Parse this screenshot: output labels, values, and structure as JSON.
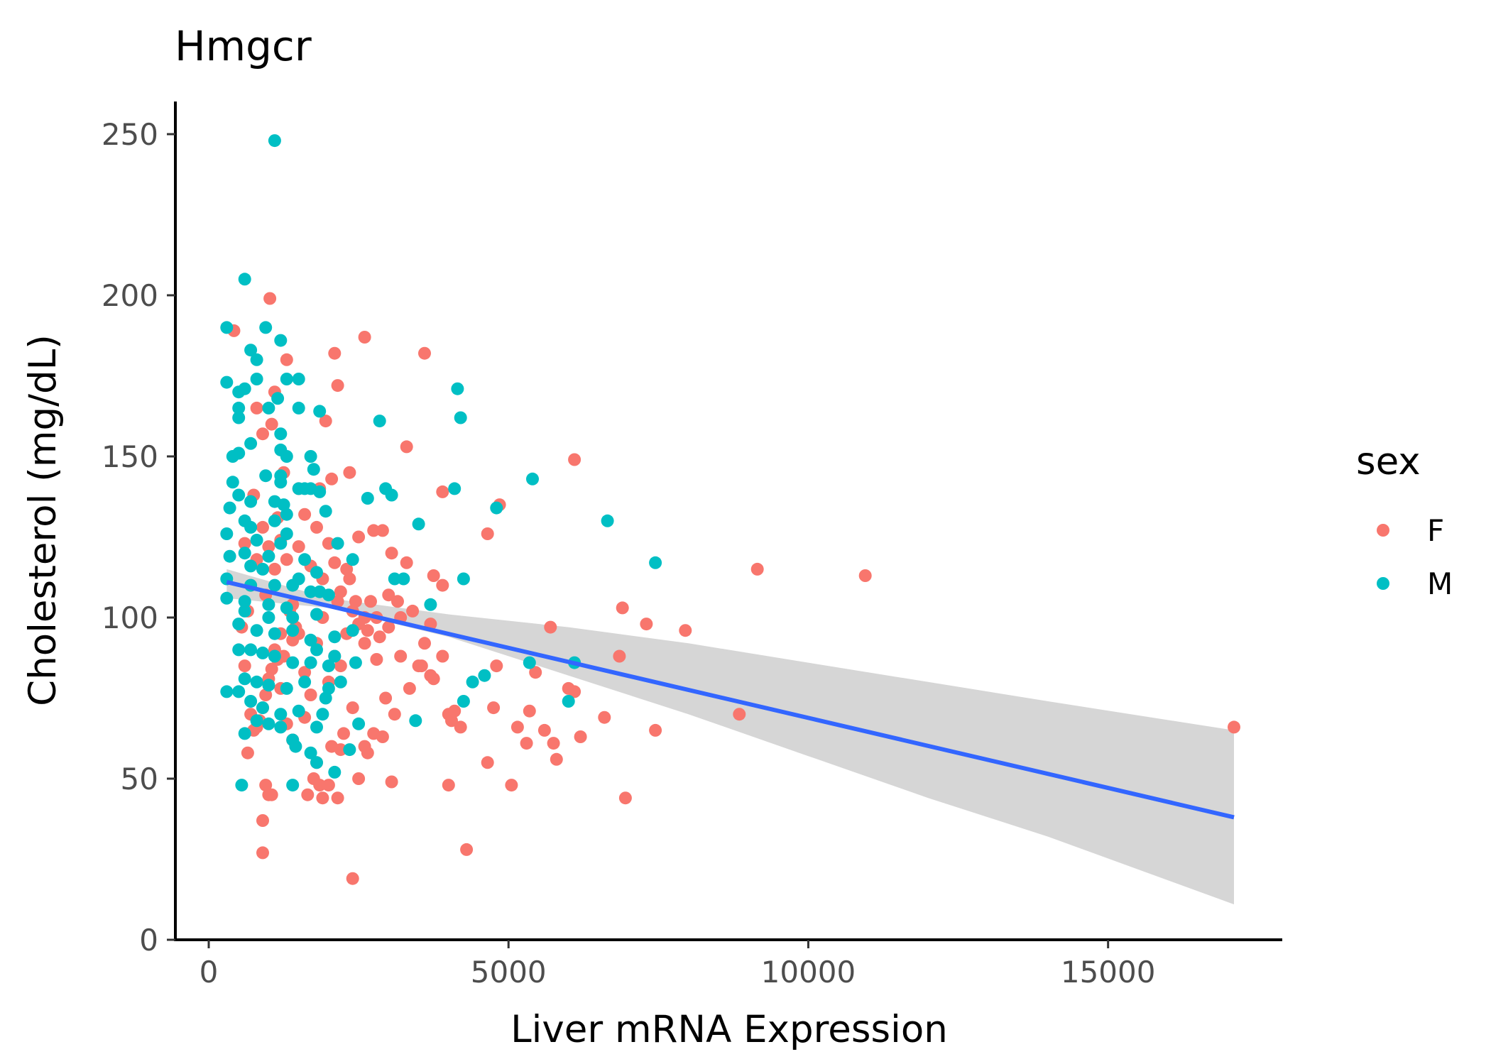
{
  "chart_data": {
    "type": "scatter",
    "title": "Hmgcr",
    "xlabel": "Liver mRNA Expression",
    "ylabel": "Cholesterol (mg/dL)",
    "xlim": [
      -600,
      18000
    ],
    "ylim": [
      0,
      260
    ],
    "xticks": [
      0,
      5000,
      10000,
      15000
    ],
    "xtick_labels": [
      "0",
      "5000",
      "10000",
      "15000"
    ],
    "yticks": [
      0,
      50,
      100,
      150,
      200,
      250
    ],
    "ytick_labels": [
      "0",
      "50",
      "100",
      "150",
      "200",
      "250"
    ],
    "grid": false,
    "legend": {
      "title": "sex",
      "position": "right"
    },
    "colors": {
      "F": "#F8766D",
      "M": "#00BFC4",
      "trend": "#3366FF",
      "ribbon": "#d4d4d4"
    },
    "series": [
      {
        "name": "F",
        "color": "#F8766D",
        "points": [
          [
            420,
            189
          ],
          [
            1020,
            199
          ],
          [
            2100,
            182
          ],
          [
            2150,
            172
          ],
          [
            2600,
            187
          ],
          [
            3600,
            182
          ],
          [
            6100,
            149
          ],
          [
            3300,
            153
          ],
          [
            4850,
            135
          ],
          [
            3900,
            139
          ],
          [
            4650,
            126
          ],
          [
            1950,
            161
          ],
          [
            1300,
            180
          ],
          [
            1100,
            170
          ],
          [
            1050,
            160
          ],
          [
            800,
            165
          ],
          [
            900,
            157
          ],
          [
            1250,
            145
          ],
          [
            1850,
            140
          ],
          [
            2050,
            143
          ],
          [
            2350,
            145
          ],
          [
            1500,
            140
          ],
          [
            2750,
            127
          ],
          [
            2900,
            127
          ],
          [
            3050,
            120
          ],
          [
            3300,
            117
          ],
          [
            3750,
            113
          ],
          [
            3900,
            110
          ],
          [
            2500,
            125
          ],
          [
            2300,
            115
          ],
          [
            2150,
            105
          ],
          [
            2450,
            105
          ],
          [
            2600,
            100
          ],
          [
            2800,
            100
          ],
          [
            2850,
            94
          ],
          [
            3000,
            107
          ],
          [
            3150,
            105
          ],
          [
            3200,
            100
          ],
          [
            3500,
            85
          ],
          [
            3550,
            85
          ],
          [
            3700,
            98
          ],
          [
            3750,
            81
          ],
          [
            3900,
            88
          ],
          [
            4000,
            70
          ],
          [
            4050,
            68
          ],
          [
            4100,
            71
          ],
          [
            4200,
            66
          ],
          [
            4000,
            48
          ],
          [
            4300,
            28
          ],
          [
            4650,
            55
          ],
          [
            4750,
            72
          ],
          [
            4800,
            85
          ],
          [
            5050,
            48
          ],
          [
            5150,
            66
          ],
          [
            5300,
            61
          ],
          [
            5350,
            71
          ],
          [
            5450,
            83
          ],
          [
            5600,
            65
          ],
          [
            5700,
            97
          ],
          [
            5750,
            61
          ],
          [
            5800,
            56
          ],
          [
            6000,
            78
          ],
          [
            6100,
            77
          ],
          [
            6200,
            63
          ],
          [
            6600,
            69
          ],
          [
            6850,
            88
          ],
          [
            6900,
            103
          ],
          [
            6950,
            44
          ],
          [
            7300,
            98
          ],
          [
            7450,
            65
          ],
          [
            7950,
            96
          ],
          [
            8850,
            70
          ],
          [
            9150,
            115
          ],
          [
            10950,
            113
          ],
          [
            17100,
            66
          ],
          [
            2400,
            19
          ],
          [
            900,
            27
          ],
          [
            900,
            37
          ],
          [
            950,
            48
          ],
          [
            1000,
            45
          ],
          [
            1050,
            45
          ],
          [
            1200,
            78
          ],
          [
            1300,
            67
          ],
          [
            1400,
            62
          ],
          [
            1600,
            69
          ],
          [
            1650,
            45
          ],
          [
            1750,
            50
          ],
          [
            1800,
            55
          ],
          [
            1850,
            48
          ],
          [
            1900,
            44
          ],
          [
            2000,
            48
          ],
          [
            2050,
            60
          ],
          [
            2150,
            44
          ],
          [
            2200,
            59
          ],
          [
            2250,
            64
          ],
          [
            2400,
            72
          ],
          [
            2500,
            50
          ],
          [
            2600,
            60
          ],
          [
            2650,
            58
          ],
          [
            2750,
            64
          ],
          [
            2900,
            63
          ],
          [
            3050,
            49
          ],
          [
            2950,
            75
          ],
          [
            3100,
            70
          ],
          [
            3350,
            78
          ],
          [
            3200,
            88
          ],
          [
            2800,
            87
          ],
          [
            2600,
            92
          ],
          [
            2300,
            95
          ],
          [
            2200,
            85
          ],
          [
            2100,
            88
          ],
          [
            2000,
            80
          ],
          [
            1800,
            92
          ],
          [
            1700,
            76
          ],
          [
            1600,
            83
          ],
          [
            1500,
            95
          ],
          [
            1450,
            97
          ],
          [
            1400,
            93
          ],
          [
            1350,
            102
          ],
          [
            1250,
            88
          ],
          [
            1200,
            95
          ],
          [
            1150,
            87
          ],
          [
            1100,
            90
          ],
          [
            1050,
            84
          ],
          [
            1000,
            81
          ],
          [
            950,
            76
          ],
          [
            900,
            72
          ],
          [
            850,
            68
          ],
          [
            800,
            66
          ],
          [
            750,
            65
          ],
          [
            700,
            70
          ],
          [
            650,
            58
          ],
          [
            600,
            85
          ],
          [
            550,
            97
          ],
          [
            650,
            102
          ],
          [
            700,
            110
          ],
          [
            800,
            118
          ],
          [
            900,
            128
          ],
          [
            1000,
            122
          ],
          [
            1100,
            115
          ],
          [
            1200,
            124
          ],
          [
            1300,
            118
          ],
          [
            1500,
            122
          ],
          [
            1700,
            116
          ],
          [
            1900,
            112
          ],
          [
            2000,
            123
          ],
          [
            2200,
            108
          ],
          [
            2350,
            112
          ],
          [
            2500,
            98
          ],
          [
            2700,
            105
          ],
          [
            3000,
            97
          ],
          [
            3400,
            102
          ],
          [
            3600,
            92
          ],
          [
            3700,
            82
          ],
          [
            1600,
            132
          ],
          [
            1800,
            128
          ],
          [
            2100,
            117
          ],
          [
            2400,
            102
          ],
          [
            2650,
            96
          ],
          [
            1400,
            104
          ],
          [
            1900,
            100
          ],
          [
            750,
            138
          ],
          [
            1150,
            131
          ],
          [
            600,
            123
          ],
          [
            950,
            107
          ]
        ]
      },
      {
        "name": "M",
        "color": "#00BFC4",
        "points": [
          [
            1100,
            248
          ],
          [
            600,
            205
          ],
          [
            300,
            190
          ],
          [
            950,
            190
          ],
          [
            1200,
            186
          ],
          [
            700,
            183
          ],
          [
            800,
            180
          ],
          [
            800,
            174
          ],
          [
            1300,
            174
          ],
          [
            1500,
            174
          ],
          [
            300,
            173
          ],
          [
            600,
            171
          ],
          [
            4150,
            171
          ],
          [
            500,
            170
          ],
          [
            1150,
            168
          ],
          [
            1000,
            165
          ],
          [
            500,
            165
          ],
          [
            1500,
            165
          ],
          [
            1850,
            164
          ],
          [
            4200,
            162
          ],
          [
            500,
            162
          ],
          [
            2850,
            161
          ],
          [
            1200,
            157
          ],
          [
            700,
            154
          ],
          [
            1200,
            152
          ],
          [
            1700,
            150
          ],
          [
            1300,
            150
          ],
          [
            500,
            151
          ],
          [
            400,
            150
          ],
          [
            1750,
            146
          ],
          [
            950,
            144
          ],
          [
            1200,
            144
          ],
          [
            5400,
            143
          ],
          [
            400,
            142
          ],
          [
            1200,
            142
          ],
          [
            1500,
            140
          ],
          [
            1600,
            140
          ],
          [
            1700,
            140
          ],
          [
            1850,
            139
          ],
          [
            2950,
            140
          ],
          [
            3050,
            138
          ],
          [
            4100,
            140
          ],
          [
            500,
            138
          ],
          [
            700,
            136
          ],
          [
            1100,
            136
          ],
          [
            1250,
            135
          ],
          [
            2650,
            137
          ],
          [
            4800,
            134
          ],
          [
            350,
            134
          ],
          [
            600,
            130
          ],
          [
            1100,
            130
          ],
          [
            1950,
            133
          ],
          [
            3500,
            129
          ],
          [
            6650,
            130
          ],
          [
            700,
            128
          ],
          [
            1300,
            126
          ],
          [
            300,
            126
          ],
          [
            800,
            124
          ],
          [
            1200,
            123
          ],
          [
            2150,
            123
          ],
          [
            600,
            120
          ],
          [
            1000,
            119
          ],
          [
            1600,
            118
          ],
          [
            2400,
            118
          ],
          [
            7450,
            117
          ],
          [
            350,
            119
          ],
          [
            700,
            116
          ],
          [
            900,
            115
          ],
          [
            1800,
            114
          ],
          [
            3100,
            112
          ],
          [
            4250,
            112
          ],
          [
            3250,
            112
          ],
          [
            300,
            112
          ],
          [
            700,
            110
          ],
          [
            1100,
            110
          ],
          [
            1400,
            110
          ],
          [
            1700,
            108
          ],
          [
            1850,
            108
          ],
          [
            2000,
            107
          ],
          [
            300,
            106
          ],
          [
            600,
            105
          ],
          [
            1000,
            104
          ],
          [
            1300,
            103
          ],
          [
            3700,
            104
          ],
          [
            600,
            102
          ],
          [
            1000,
            100
          ],
          [
            1400,
            100
          ],
          [
            1800,
            101
          ],
          [
            500,
            98
          ],
          [
            800,
            96
          ],
          [
            1100,
            95
          ],
          [
            1400,
            96
          ],
          [
            1700,
            93
          ],
          [
            2100,
            94
          ],
          [
            2400,
            96
          ],
          [
            500,
            90
          ],
          [
            700,
            90
          ],
          [
            900,
            89
          ],
          [
            1100,
            88
          ],
          [
            1400,
            86
          ],
          [
            1700,
            86
          ],
          [
            2000,
            85
          ],
          [
            2450,
            86
          ],
          [
            5350,
            86
          ],
          [
            6100,
            86
          ],
          [
            600,
            81
          ],
          [
            800,
            80
          ],
          [
            1000,
            79
          ],
          [
            1300,
            78
          ],
          [
            1600,
            80
          ],
          [
            2000,
            78
          ],
          [
            2200,
            80
          ],
          [
            4400,
            80
          ],
          [
            4600,
            82
          ],
          [
            300,
            77
          ],
          [
            500,
            77
          ],
          [
            700,
            74
          ],
          [
            900,
            72
          ],
          [
            1200,
            70
          ],
          [
            1500,
            71
          ],
          [
            1900,
            70
          ],
          [
            4250,
            74
          ],
          [
            6000,
            74
          ],
          [
            800,
            68
          ],
          [
            1000,
            67
          ],
          [
            1200,
            66
          ],
          [
            1800,
            66
          ],
          [
            2500,
            67
          ],
          [
            3450,
            68
          ],
          [
            600,
            64
          ],
          [
            1400,
            62
          ],
          [
            1700,
            58
          ],
          [
            1800,
            55
          ],
          [
            2100,
            52
          ],
          [
            2350,
            59
          ],
          [
            1400,
            48
          ],
          [
            550,
            48
          ],
          [
            1450,
            60
          ],
          [
            1950,
            75
          ],
          [
            2100,
            88
          ],
          [
            1800,
            90
          ],
          [
            1500,
            112
          ],
          [
            1300,
            132
          ]
        ]
      }
    ],
    "trend": {
      "method": "lm",
      "x": [
        300,
        17100
      ],
      "y": [
        111,
        38
      ],
      "ribbon_x": [
        300,
        2000,
        4000,
        6000,
        8000,
        10000,
        12000,
        14000,
        17100
      ],
      "ribbon_lower": [
        106,
        103,
        94,
        82,
        70,
        57,
        44,
        32,
        11
      ],
      "ribbon_upper": [
        115,
        106,
        101,
        97,
        92,
        86,
        80,
        74,
        65
      ]
    }
  }
}
